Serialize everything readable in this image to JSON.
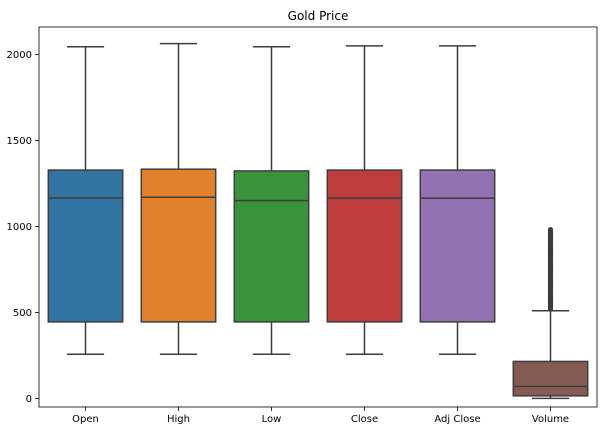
{
  "chart_data": {
    "type": "box",
    "title": "Gold Price",
    "xlabel": "",
    "ylabel": "",
    "categories": [
      "Open",
      "High",
      "Low",
      "Close",
      "Adj Close",
      "Volume"
    ],
    "yticks": [
      0,
      500,
      1000,
      1500,
      2000
    ],
    "ylim": [
      -50,
      2160
    ],
    "grid": false,
    "legend": "none",
    "boxes": [
      {
        "name": "Open",
        "whisker_low": 257,
        "q1": 445,
        "median": 1165,
        "q3": 1328,
        "whisker_high": 2045,
        "color": "#3274a1"
      },
      {
        "name": "High",
        "whisker_low": 257,
        "q1": 445,
        "median": 1170,
        "q3": 1333,
        "whisker_high": 2063,
        "color": "#e1812c"
      },
      {
        "name": "Low",
        "whisker_low": 257,
        "q1": 445,
        "median": 1150,
        "q3": 1323,
        "whisker_high": 2045,
        "color": "#3a923a"
      },
      {
        "name": "Close",
        "whisker_low": 257,
        "q1": 445,
        "median": 1165,
        "q3": 1328,
        "whisker_high": 2050,
        "color": "#c03d3e"
      },
      {
        "name": "Adj Close",
        "whisker_low": 257,
        "q1": 445,
        "median": 1165,
        "q3": 1328,
        "whisker_high": 2050,
        "color": "#9372b2"
      },
      {
        "name": "Volume",
        "whisker_low": 0,
        "q1": 15,
        "median": 70,
        "q3": 215,
        "whisker_high": 510,
        "outlier_range": [
          520,
          985
        ],
        "color": "#845b53"
      }
    ]
  }
}
